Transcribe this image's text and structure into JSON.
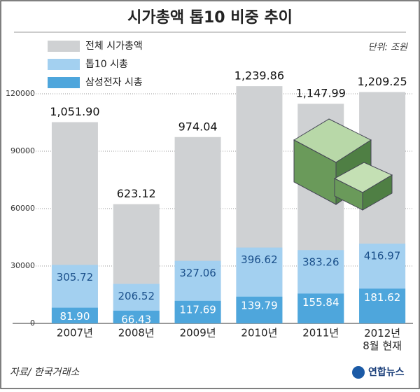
{
  "chart_data": {
    "type": "bar",
    "title": "시가총액 톱10 비중 추이",
    "unit_note": "단위: 조원",
    "source": "자료/ 한국거래소",
    "credit": "연합뉴스",
    "categories": [
      "2007년",
      "2008년",
      "2009년",
      "2010년",
      "2011년",
      "2012년\n8월 현재"
    ],
    "series": [
      {
        "name": "전체 시가총액",
        "color": "#cfd1d3",
        "values": [
          105190,
          62312,
          97404,
          123986,
          114799,
          120925
        ],
        "value_labels": [
          "1,051.90",
          "623.12",
          "974.04",
          "1,239.86",
          "1,147.99",
          "1,209.25"
        ]
      },
      {
        "name": "톱10 시총",
        "color": "#a3d0f0",
        "values": [
          30572,
          20652,
          32706,
          39662,
          38326,
          41697
        ],
        "value_labels": [
          "305.72",
          "206.52",
          "327.06",
          "396.62",
          "383.26",
          "416.97"
        ]
      },
      {
        "name": "삼성전자 시총",
        "color": "#4ea6dc",
        "values": [
          8190,
          6643,
          11769,
          13979,
          15584,
          18162
        ],
        "value_labels": [
          "81.90",
          "66.43",
          "117.69",
          "139.79",
          "155.84",
          "181.62"
        ]
      }
    ],
    "ylim": [
      0,
      130000
    ],
    "yticks": [
      0,
      30000,
      60000,
      90000,
      120000
    ],
    "grid": true
  }
}
